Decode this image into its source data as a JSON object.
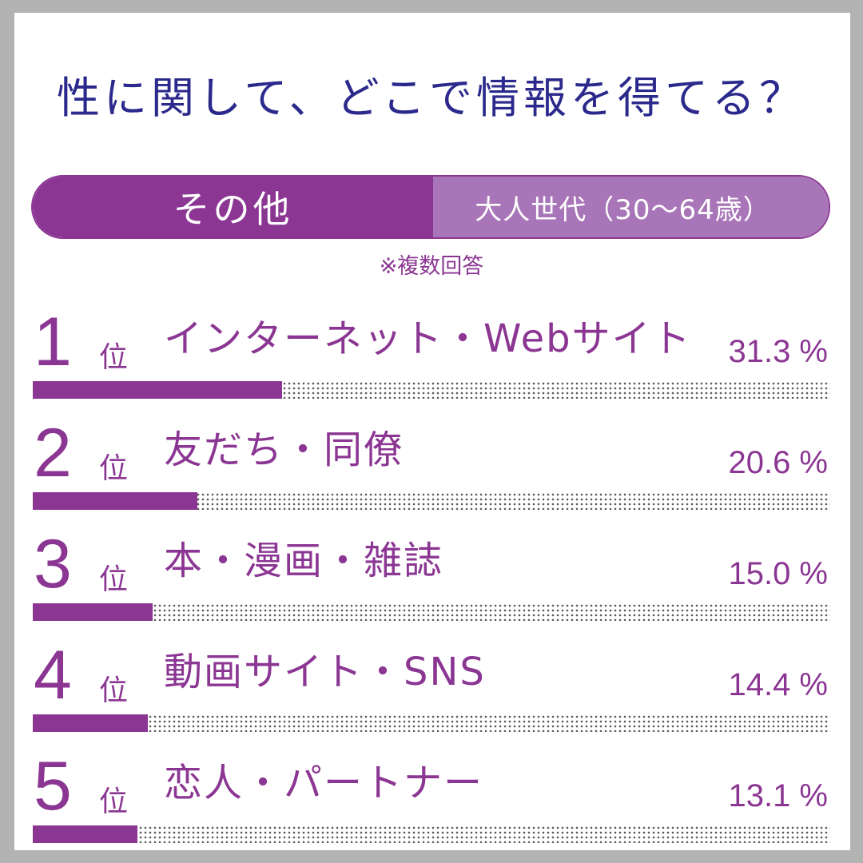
{
  "title": "性に関して、どこで情報を得てる？",
  "tabs": {
    "active": "その他",
    "inactive": "大人世代（30〜64歳）"
  },
  "note": "※複数回答",
  "colors": {
    "accent": "#8b3693",
    "accent_light": "#a876b8",
    "title": "#2b2a8c",
    "background": "#b3b3b3"
  },
  "rank_suffix": "位",
  "chart_data": {
    "type": "bar",
    "title": "性に関して、どこで情報を得てる？",
    "categories": [
      "インターネット・Webサイト",
      "友だち・同僚",
      "本・漫画・雑誌",
      "動画サイト・SNS",
      "恋人・パートナー"
    ],
    "values": [
      31.3,
      20.6,
      15.0,
      14.4,
      13.1
    ],
    "unit": "%",
    "xlim": [
      0,
      100
    ],
    "rows": [
      {
        "rank": "1",
        "label": "インターネット・Webサイト",
        "value": 31.3,
        "pct": "31.3 %"
      },
      {
        "rank": "2",
        "label": "友だち・同僚",
        "value": 20.6,
        "pct": "20.6 %"
      },
      {
        "rank": "3",
        "label": "本・漫画・雑誌",
        "value": 15.0,
        "pct": "15.0 %"
      },
      {
        "rank": "4",
        "label": "動画サイト・SNS",
        "value": 14.4,
        "pct": "14.4 %"
      },
      {
        "rank": "5",
        "label": "恋人・パートナー",
        "value": 13.1,
        "pct": "13.1 %"
      }
    ]
  }
}
